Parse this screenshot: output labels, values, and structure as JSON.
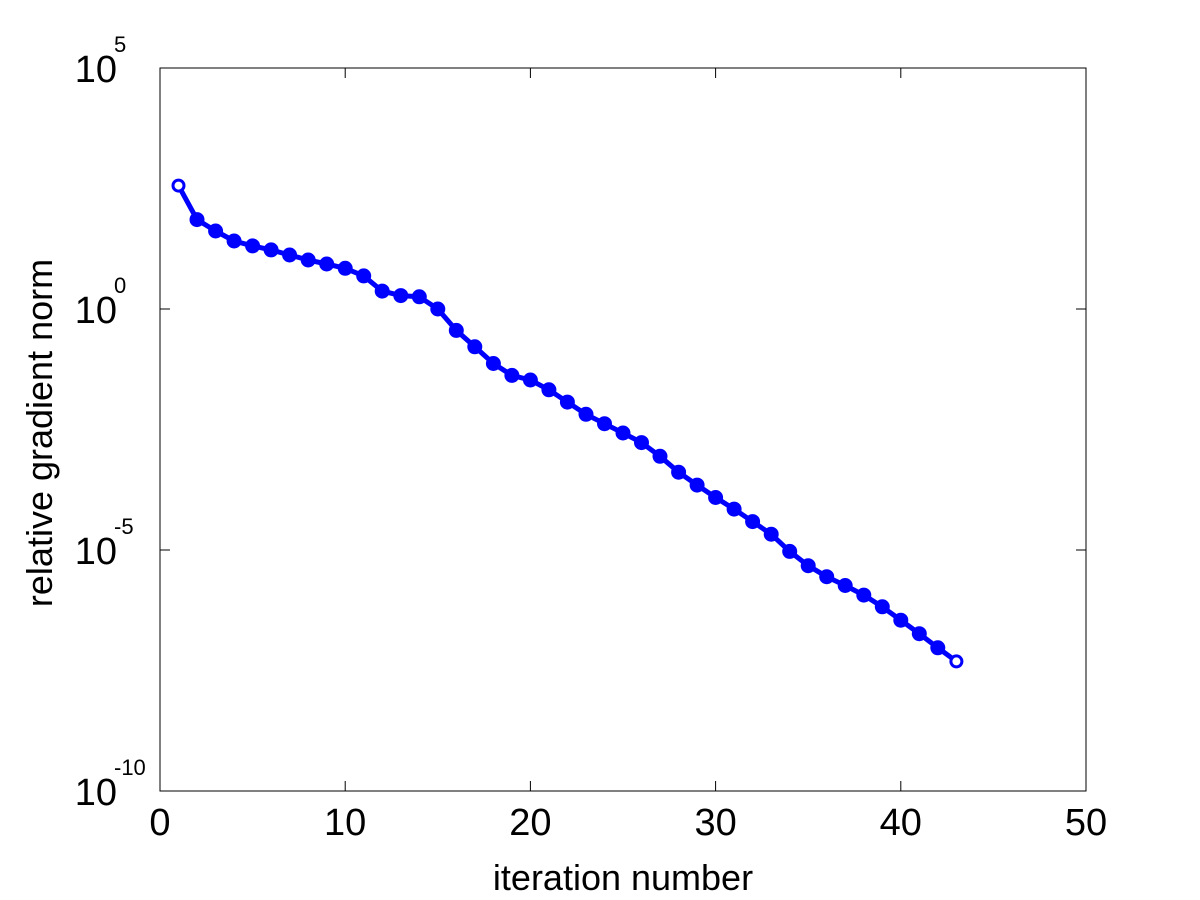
{
  "chart_data": {
    "type": "line",
    "title": "",
    "xlabel": "iteration number",
    "ylabel": "relative gradient norm",
    "xlim": [
      0,
      50
    ],
    "ylim": [
      1e-10,
      100000
    ],
    "yscale": "log",
    "grid": false,
    "legend": "none",
    "x_ticks": [
      0,
      10,
      20,
      30,
      40,
      50
    ],
    "x_tick_labels": [
      "0",
      "10",
      "20",
      "30",
      "40",
      "50"
    ],
    "y_ticks": [
      {
        "value": 100000,
        "base": "10",
        "exponent": "5"
      },
      {
        "value": 1,
        "base": "10",
        "exponent": "0"
      },
      {
        "value": 1e-05,
        "base": "10",
        "exponent": "-5"
      },
      {
        "value": 1e-10,
        "base": "10",
        "exponent": "-10"
      }
    ],
    "series": [
      {
        "color": "#0000ff",
        "marker": "circle",
        "x": [
          1,
          2,
          3,
          4,
          5,
          6,
          7,
          8,
          9,
          10,
          11,
          12,
          13,
          14,
          15,
          16,
          17,
          18,
          19,
          20,
          21,
          22,
          23,
          24,
          25,
          26,
          27,
          28,
          29,
          30,
          31,
          32,
          33,
          34,
          35,
          36,
          37,
          38,
          39,
          40,
          41,
          42,
          43
        ],
        "y": [
          363,
          71.6,
          41.5,
          25.7,
          20.4,
          16.8,
          13.2,
          10.4,
          8.6,
          7.0,
          4.86,
          2.35,
          1.9,
          1.79,
          1.0,
          0.359,
          0.164,
          0.074,
          0.0419,
          0.0336,
          0.0211,
          0.0117,
          0.00654,
          0.00417,
          0.00268,
          0.00169,
          0.000879,
          0.000412,
          0.000222,
          0.000123,
          7.06e-05,
          3.88e-05,
          2.13e-05,
          9.37e-06,
          4.73e-06,
          2.79e-06,
          1.83e-06,
          1.16e-06,
          6.64e-07,
          3.49e-07,
          1.83e-07,
          9.35e-08,
          4.88e-08
        ]
      }
    ]
  }
}
